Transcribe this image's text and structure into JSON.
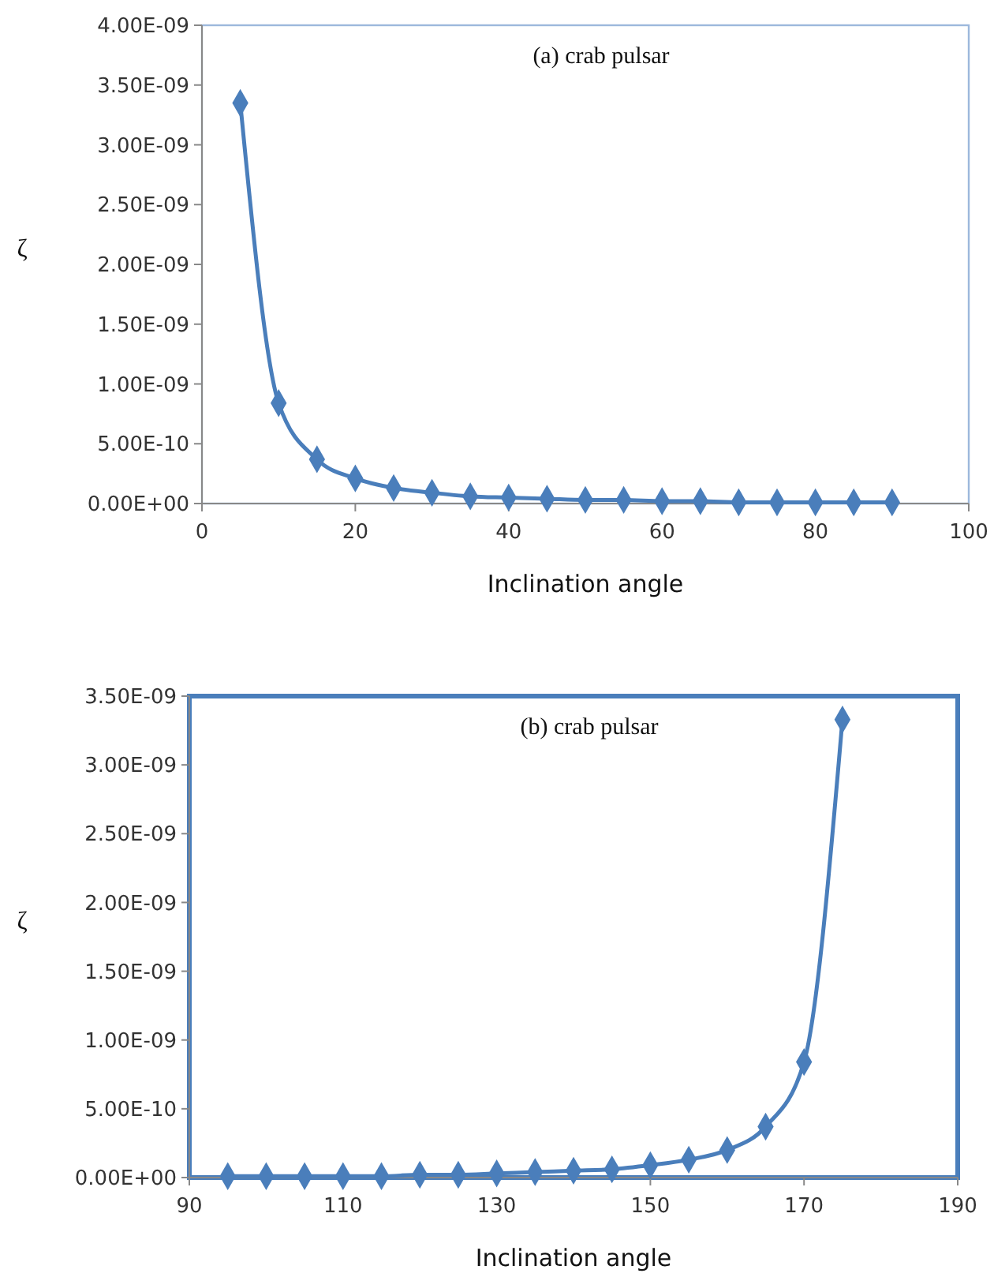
{
  "chart_data": [
    {
      "type": "line",
      "title": "(a) crab pulsar",
      "xlabel": "Inclination angle",
      "ylabel": "ζ",
      "marker": "diamond",
      "grid": false,
      "xlim": [
        0,
        100
      ],
      "xticks": [
        0,
        20,
        40,
        60,
        80,
        100
      ],
      "ylim": [
        0,
        4e-09
      ],
      "yticks": [
        {
          "value": 0,
          "label": "0.00E+00"
        },
        {
          "value": 5e-10,
          "label": "5.00E-10"
        },
        {
          "value": 1e-09,
          "label": "1.00E-09"
        },
        {
          "value": 1.5e-09,
          "label": "1.50E-09"
        },
        {
          "value": 2e-09,
          "label": "2.00E-09"
        },
        {
          "value": 2.5e-09,
          "label": "2.50E-09"
        },
        {
          "value": 3e-09,
          "label": "3.00E-09"
        },
        {
          "value": 3.5e-09,
          "label": "3.50E-09"
        },
        {
          "value": 4e-09,
          "label": "4.00E-09"
        }
      ],
      "x": [
        5,
        10,
        15,
        20,
        25,
        30,
        35,
        40,
        45,
        50,
        55,
        60,
        65,
        70,
        75,
        80,
        85,
        90
      ],
      "series": [
        {
          "color": "#4a7ebb",
          "values": [
            3.35e-09,
            8.4e-10,
            3.7e-10,
            2.1e-10,
            1.3e-10,
            9e-11,
            6e-11,
            5e-11,
            4e-11,
            3e-11,
            3e-11,
            2e-11,
            2e-11,
            1e-11,
            1e-11,
            1e-11,
            1e-11,
            1e-11
          ]
        }
      ]
    },
    {
      "type": "line",
      "title": "(b) crab pulsar",
      "xlabel": "Inclination angle",
      "ylabel": "ζ",
      "marker": "diamond",
      "grid": false,
      "xlim": [
        90,
        190
      ],
      "xticks": [
        90,
        110,
        130,
        150,
        170,
        190
      ],
      "ylim": [
        0,
        3.5e-09
      ],
      "yticks": [
        {
          "value": 0,
          "label": "0.00E+00"
        },
        {
          "value": 5e-10,
          "label": "5.00E-10"
        },
        {
          "value": 1e-09,
          "label": "1.00E-09"
        },
        {
          "value": 1.5e-09,
          "label": "1.50E-09"
        },
        {
          "value": 2e-09,
          "label": "2.00E-09"
        },
        {
          "value": 2.5e-09,
          "label": "2.50E-09"
        },
        {
          "value": 3e-09,
          "label": "3.00E-09"
        },
        {
          "value": 3.5e-09,
          "label": "3.50E-09"
        }
      ],
      "x": [
        95,
        100,
        105,
        110,
        115,
        120,
        125,
        130,
        135,
        140,
        145,
        150,
        155,
        160,
        165,
        170,
        175
      ],
      "series": [
        {
          "color": "#4a7ebb",
          "values": [
            1e-11,
            1e-11,
            1e-11,
            1e-11,
            1e-11,
            2e-11,
            2e-11,
            3e-11,
            4e-11,
            5e-11,
            6e-11,
            9e-11,
            1.3e-10,
            2e-10,
            3.7e-10,
            8.4e-10,
            3.33e-09
          ]
        }
      ]
    }
  ]
}
